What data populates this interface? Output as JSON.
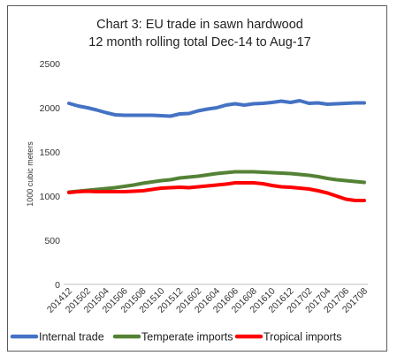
{
  "chart_data": {
    "type": "line",
    "title_lines": [
      "Chart 3: EU trade in sawn hardwood",
      "12 month rolling total Dec-14 to Aug-17"
    ],
    "ylabel": "1000 cubic meters",
    "xlabel": "",
    "ylim": [
      0,
      2500
    ],
    "yticks": [
      0,
      500,
      1000,
      1500,
      2000,
      2500
    ],
    "grid": false,
    "legend_position": "bottom",
    "x_tick_labels": [
      "201412",
      "201502",
      "201504",
      "201506",
      "201508",
      "201510",
      "201512",
      "201602",
      "201604",
      "201606",
      "201608",
      "201610",
      "201612",
      "201702",
      "201704",
      "201706",
      "201708"
    ],
    "x": [
      "201412",
      "201501",
      "201502",
      "201503",
      "201504",
      "201505",
      "201506",
      "201507",
      "201508",
      "201509",
      "201510",
      "201511",
      "201512",
      "201601",
      "201602",
      "201603",
      "201604",
      "201605",
      "201606",
      "201607",
      "201608",
      "201609",
      "201610",
      "201611",
      "201612",
      "201701",
      "201702",
      "201703",
      "201704",
      "201705",
      "201706",
      "201707",
      "201708"
    ],
    "series": [
      {
        "name": "Internal trade",
        "color": "#4472C4",
        "values": [
          2050,
          2020,
          2000,
          1975,
          1945,
          1920,
          1915,
          1915,
          1915,
          1915,
          1910,
          1905,
          1930,
          1935,
          1965,
          1985,
          2000,
          2030,
          2045,
          2030,
          2045,
          2050,
          2060,
          2075,
          2060,
          2080,
          2050,
          2055,
          2040,
          2045,
          2050,
          2055,
          2055
        ]
      },
      {
        "name": "Temperate imports",
        "color": "#548235",
        "values": [
          1045,
          1055,
          1065,
          1075,
          1085,
          1095,
          1110,
          1125,
          1145,
          1160,
          1175,
          1185,
          1205,
          1215,
          1225,
          1240,
          1255,
          1265,
          1275,
          1275,
          1275,
          1270,
          1265,
          1260,
          1255,
          1245,
          1235,
          1220,
          1200,
          1185,
          1175,
          1165,
          1155
        ]
      },
      {
        "name": "Tropical imports",
        "color": "#FF0000",
        "values": [
          1040,
          1050,
          1055,
          1050,
          1050,
          1050,
          1050,
          1055,
          1060,
          1075,
          1090,
          1095,
          1100,
          1095,
          1105,
          1115,
          1125,
          1135,
          1150,
          1150,
          1150,
          1140,
          1120,
          1105,
          1100,
          1090,
          1080,
          1060,
          1035,
          1000,
          965,
          950,
          950
        ]
      }
    ]
  }
}
